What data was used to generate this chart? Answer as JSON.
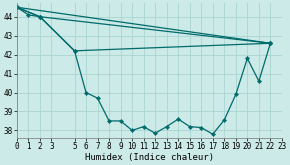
{
  "xlabel": "Humidex (Indice chaleur)",
  "bg_color": "#cceae7",
  "grid_color": "#aad4d0",
  "line_color": "#006b6b",
  "xlim": [
    0,
    23
  ],
  "ylim": [
    37.6,
    44.7
  ],
  "yticks": [
    38,
    39,
    40,
    41,
    42,
    43,
    44
  ],
  "xticks": [
    0,
    1,
    2,
    3,
    5,
    6,
    7,
    8,
    9,
    10,
    11,
    12,
    13,
    14,
    15,
    16,
    17,
    18,
    19,
    20,
    21,
    22,
    23
  ],
  "xlabel_fontsize": 6.5,
  "tick_fontsize": 5.5,
  "series": [
    {
      "x": [
        0,
        1,
        2,
        5,
        6,
        7,
        8,
        9,
        10,
        11,
        12,
        13,
        14,
        15,
        16,
        17,
        18,
        19,
        20,
        21,
        22
      ],
      "y": [
        44.5,
        44.1,
        44.0,
        42.2,
        40.0,
        39.7,
        38.5,
        38.5,
        38.0,
        38.2,
        37.85,
        38.2,
        38.6,
        38.2,
        38.15,
        37.8,
        38.55,
        39.9,
        41.8,
        40.6,
        42.6
      ]
    },
    {
      "x": [
        0,
        2,
        5,
        22
      ],
      "y": [
        44.5,
        44.0,
        42.2,
        42.6
      ]
    },
    {
      "x": [
        0,
        2,
        22
      ],
      "y": [
        44.5,
        44.0,
        42.6
      ]
    },
    {
      "x": [
        0,
        22
      ],
      "y": [
        44.5,
        42.6
      ]
    }
  ]
}
